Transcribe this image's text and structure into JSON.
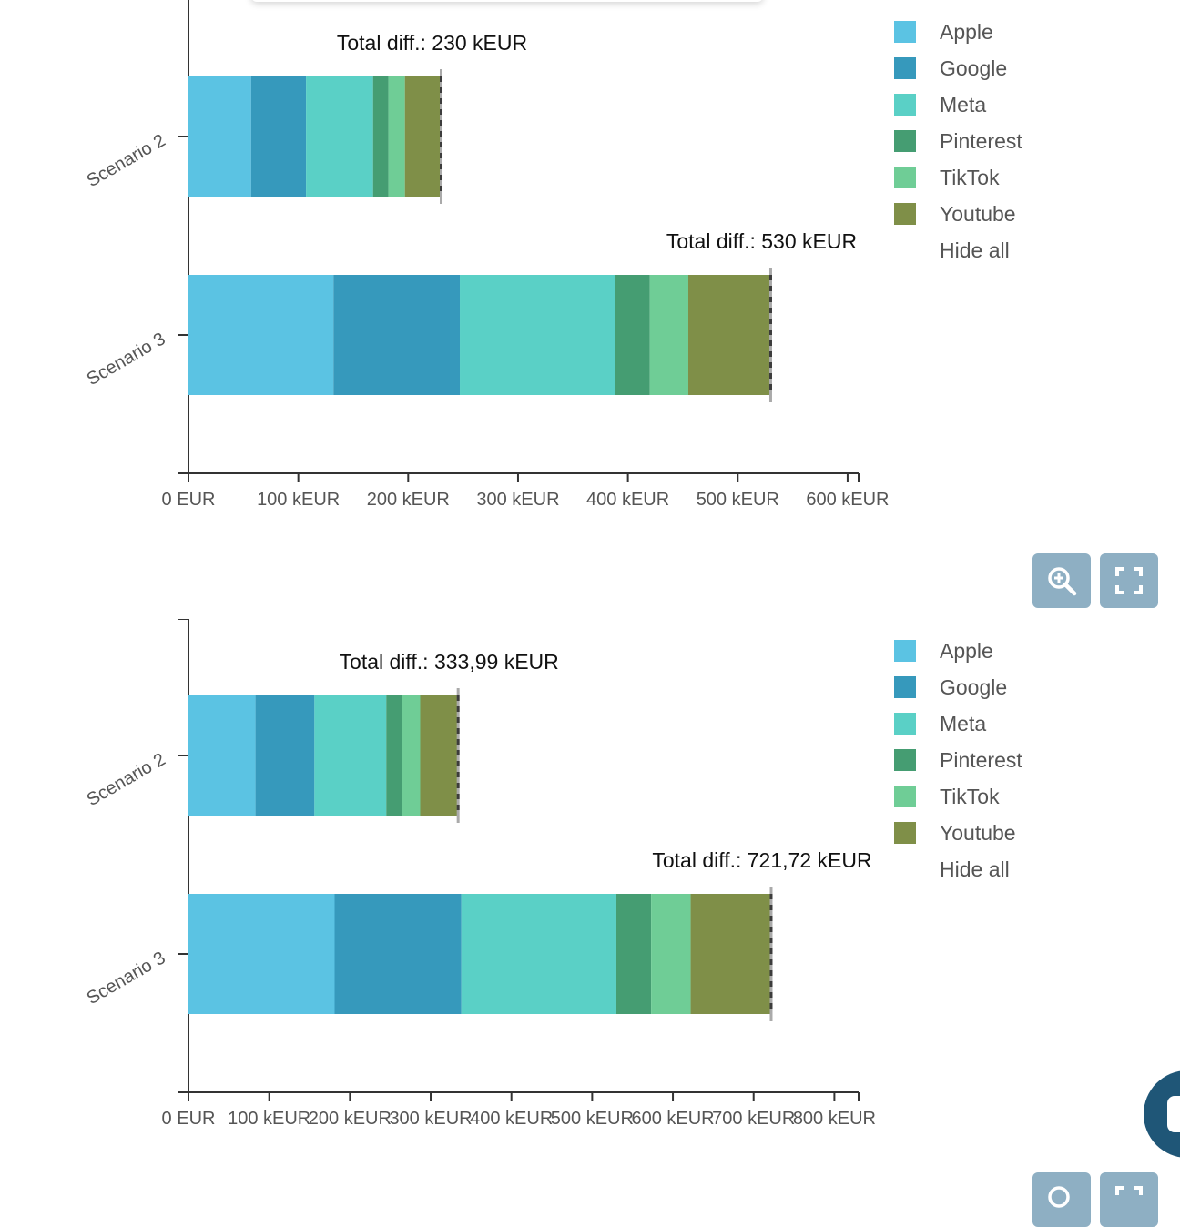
{
  "chart_data": [
    {
      "type": "bar",
      "orientation": "horizontal",
      "stacked": true,
      "categories": [
        "Scenario 2",
        "Scenario 3"
      ],
      "series": [
        {
          "name": "Apple",
          "color": "#5bc3e3",
          "values": [
            57,
            132
          ]
        },
        {
          "name": "Google",
          "color": "#3699bc",
          "values": [
            50,
            115
          ]
        },
        {
          "name": "Meta",
          "color": "#5ad0c6",
          "values": [
            61,
            141
          ]
        },
        {
          "name": "Pinterest",
          "color": "#459d72",
          "values": [
            14,
            32
          ]
        },
        {
          "name": "TikTok",
          "color": "#6fcd96",
          "values": [
            15,
            35
          ]
        },
        {
          "name": "Youtube",
          "color": "#7f8f48",
          "values": [
            33,
            75
          ]
        }
      ],
      "totals": [
        230,
        530
      ],
      "annotations": [
        "Total diff.: 230 kEUR",
        "Total diff.: 530 kEUR"
      ],
      "xlim": [
        0,
        610
      ],
      "xticks": [
        {
          "value": 0,
          "label": "0 EUR"
        },
        {
          "value": 100,
          "label": "100 kEUR"
        },
        {
          "value": 200,
          "label": "200 kEUR"
        },
        {
          "value": 300,
          "label": "300 kEUR"
        },
        {
          "value": 400,
          "label": "400 kEUR"
        },
        {
          "value": 500,
          "label": "500 kEUR"
        },
        {
          "value": 600,
          "label": "600 kEUR"
        }
      ],
      "legend_position": "right",
      "legend_hide_all": "Hide all",
      "grid": false
    },
    {
      "type": "bar",
      "orientation": "horizontal",
      "stacked": true,
      "categories": [
        "Scenario 2",
        "Scenario 3"
      ],
      "series": [
        {
          "name": "Apple",
          "color": "#5bc3e3",
          "values": [
            83,
            181
          ]
        },
        {
          "name": "Google",
          "color": "#3699bc",
          "values": [
            73,
            157
          ]
        },
        {
          "name": "Meta",
          "color": "#5ad0c6",
          "values": [
            89,
            192
          ]
        },
        {
          "name": "Pinterest",
          "color": "#459d72",
          "values": [
            20,
            43
          ]
        },
        {
          "name": "TikTok",
          "color": "#6fcd96",
          "values": [
            22,
            49
          ]
        },
        {
          "name": "Youtube",
          "color": "#7f8f48",
          "values": [
            47,
            100
          ]
        }
      ],
      "totals": [
        333.99,
        721.72
      ],
      "annotations": [
        "Total diff.: 333,99 kEUR",
        "Total diff.: 721,72 kEUR"
      ],
      "xlim": [
        0,
        830
      ],
      "xticks": [
        {
          "value": 0,
          "label": "0 EUR"
        },
        {
          "value": 100,
          "label": "100 kEUR"
        },
        {
          "value": 200,
          "label": "200 kEUR"
        },
        {
          "value": 300,
          "label": "300 kEUR"
        },
        {
          "value": 400,
          "label": "400 kEUR"
        },
        {
          "value": 500,
          "label": "500 kEUR"
        },
        {
          "value": 600,
          "label": "600 kEUR"
        },
        {
          "value": 700,
          "label": "700 kEUR"
        },
        {
          "value": 800,
          "label": "800 kEUR"
        }
      ],
      "legend_position": "right",
      "legend_hide_all": "Hide all",
      "grid": false
    }
  ],
  "toolbar": {
    "zoom_icon": "zoom-in-icon",
    "fullscreen_icon": "fullscreen-icon",
    "button_color": "#8eafc3"
  },
  "chat": {
    "icon": "chat-icon",
    "color": "#1f5677"
  }
}
